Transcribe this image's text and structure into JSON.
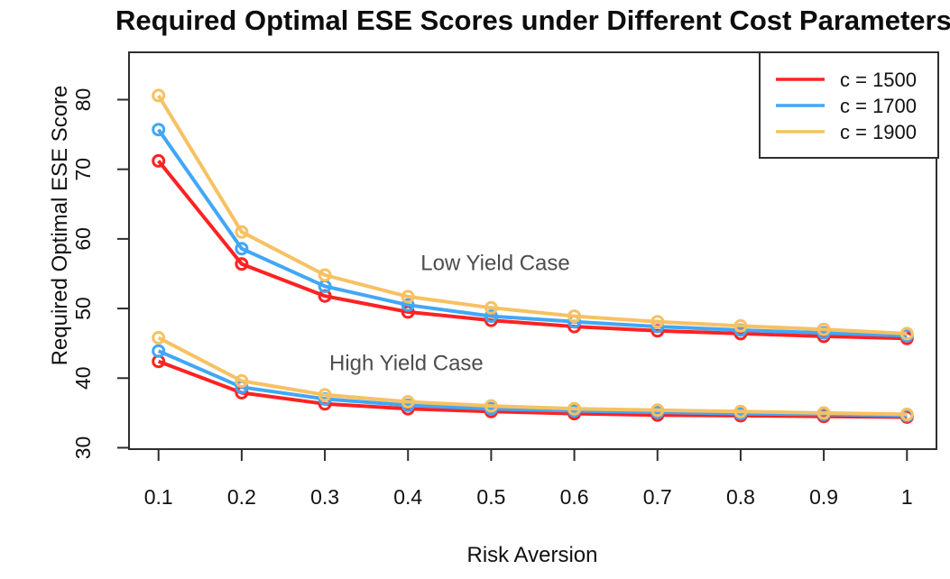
{
  "chart_data": {
    "type": "line",
    "title": "Required Optimal ESE Scores under Different Cost Parameters",
    "xlabel": "Risk Aversion",
    "ylabel": "Required Optimal ESE Score",
    "x": [
      0.1,
      0.2,
      0.3,
      0.4,
      0.5,
      0.6,
      0.7,
      0.8,
      0.9,
      1.0
    ],
    "xtick_labels": [
      "0.1",
      "0.2",
      "0.3",
      "0.4",
      "0.5",
      "0.6",
      "0.7",
      "0.8",
      "0.9",
      "1"
    ],
    "yticks": [
      30,
      40,
      50,
      60,
      70,
      80
    ],
    "xlim": [
      0.0645,
      1.0355
    ],
    "ylim": [
      29.8,
      86.8
    ],
    "grid": false,
    "marker": "open-circle",
    "legend": {
      "position": "top-right",
      "entries": [
        {
          "label": "c = 1500",
          "color": "#FF2222"
        },
        {
          "label": "c = 1700",
          "color": "#41A7F7"
        },
        {
          "label": "c = 1900",
          "color": "#F7C163"
        }
      ]
    },
    "series": [
      {
        "name": "c = 1500 (Low Yield)",
        "case": "Low Yield Case",
        "color": "#FF2222",
        "values": [
          71.2,
          56.4,
          51.8,
          49.5,
          48.3,
          47.4,
          46.8,
          46.4,
          46.0,
          45.7
        ]
      },
      {
        "name": "c = 1700 (Low Yield)",
        "case": "Low Yield Case",
        "color": "#41A7F7",
        "values": [
          75.7,
          58.6,
          53.2,
          50.5,
          48.9,
          48.1,
          47.4,
          46.9,
          46.5,
          46.1
        ]
      },
      {
        "name": "c = 1900 (Low Yield)",
        "case": "Low Yield Case",
        "color": "#F7C163",
        "values": [
          80.6,
          61.0,
          54.8,
          51.7,
          50.1,
          48.9,
          48.1,
          47.5,
          47.0,
          46.4
        ]
      },
      {
        "name": "c = 1500 (High Yield)",
        "case": "High Yield Case",
        "color": "#FF2222",
        "values": [
          42.4,
          37.9,
          36.3,
          35.6,
          35.2,
          34.9,
          34.7,
          34.6,
          34.5,
          34.4
        ]
      },
      {
        "name": "c = 1700 (High Yield)",
        "case": "High Yield Case",
        "color": "#41A7F7",
        "values": [
          43.9,
          38.7,
          37.0,
          36.1,
          35.6,
          35.3,
          35.1,
          34.9,
          34.8,
          34.6
        ]
      },
      {
        "name": "c = 1900 (High Yield)",
        "case": "High Yield Case",
        "color": "#F7C163",
        "values": [
          45.8,
          39.6,
          37.6,
          36.6,
          36.0,
          35.6,
          35.4,
          35.2,
          35.0,
          34.8
        ]
      }
    ],
    "annotations": [
      {
        "text": "Low Yield Case",
        "x": 0.505,
        "y": 56.5
      },
      {
        "text": "High Yield Case",
        "x": 0.398,
        "y": 42.1
      }
    ],
    "colors": {
      "axis": "#2e2e2e",
      "tick_label": "#111111",
      "annotation": "#4d4d4d",
      "title": "#0d0d0d"
    }
  }
}
